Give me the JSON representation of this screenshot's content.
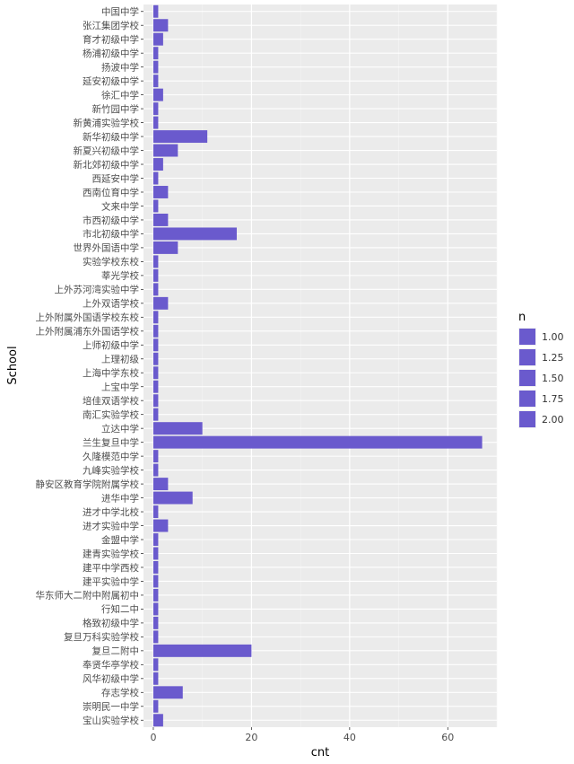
{
  "chart_data": {
    "type": "bar",
    "orientation": "horizontal",
    "xlabel": "cnt",
    "ylabel": "School",
    "xlim": [
      -2,
      70
    ],
    "x_ticks": [
      0,
      20,
      40,
      60
    ],
    "grid": true,
    "bar_color": "#6a5acd",
    "panel_color": "#ebebeb",
    "categories": [
      "中国中学",
      "张江集团学校",
      "育才初级中学",
      "杨浦初级中学",
      "扬波中学",
      "延安初级中学",
      "徐汇中学",
      "新竹园中学",
      "新黄浦实验学校",
      "新华初级中学",
      "新夏兴初级中学",
      "新北郊初级中学",
      "西延安中学",
      "西南位育中学",
      "文来中学",
      "市西初级中学",
      "市北初级中学",
      "世界外国语中学",
      "实验学校东校",
      "莘光学校",
      "上外苏河湾实验中学",
      "上外双语学校",
      "上外附属外国语学校东校",
      "上外附属浦东外国语学校",
      "上师初级中学",
      "上理初级",
      "上海中学东校",
      "上宝中学",
      "培佳双语学校",
      "南汇实验学校",
      "立达中学",
      "兰生复旦中学",
      "久隆模范中学",
      "九峰实验学校",
      "静安区教育学院附属学校",
      "进华中学",
      "进才中学北校",
      "进才实验中学",
      "金盟中学",
      "建青实验学校",
      "建平中学西校",
      "建平实验中学",
      "华东师大二附中附属初中",
      "行知二中",
      "格致初级中学",
      "复旦万科实验学校",
      "复旦二附中",
      "奉贤华亭学校",
      "风华初级中学",
      "存志学校",
      "崇明民一中学",
      "宝山实验学校"
    ],
    "values": [
      1,
      3,
      2,
      1,
      1,
      1,
      2,
      1,
      1,
      11,
      5,
      2,
      1,
      3,
      1,
      3,
      17,
      5,
      1,
      1,
      1,
      3,
      1,
      1,
      1,
      1,
      1,
      1,
      1,
      1,
      10,
      67,
      1,
      1,
      3,
      8,
      1,
      3,
      1,
      1,
      1,
      1,
      1,
      1,
      1,
      1,
      20,
      1,
      1,
      6,
      1,
      2
    ],
    "legend": {
      "title": "n",
      "position": "right",
      "labels": [
        "1.00",
        "1.25",
        "1.50",
        "1.75",
        "2.00"
      ]
    }
  }
}
